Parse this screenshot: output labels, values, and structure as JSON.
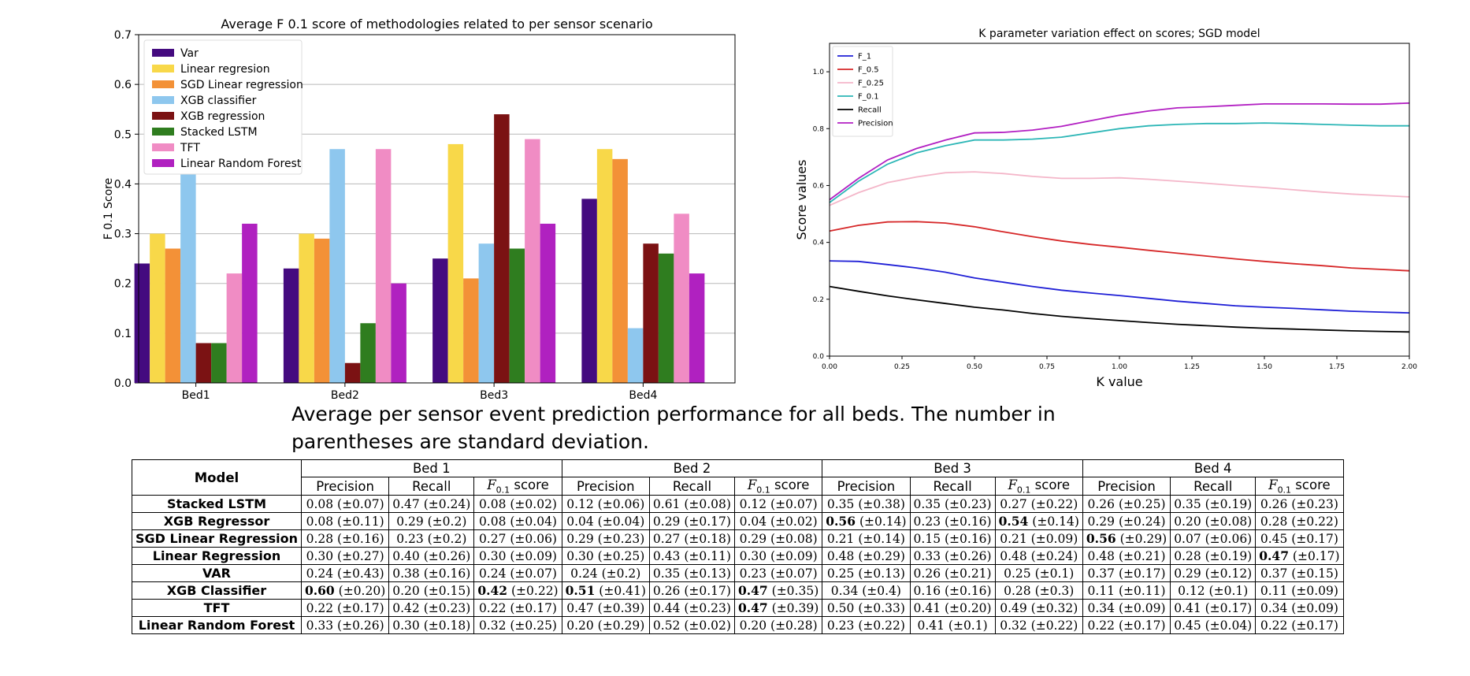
{
  "chart_data": [
    {
      "type": "bar",
      "title": "Average F 0.1 score of methodologies related to per sensor scenario",
      "xlabel": "",
      "ylabel": "F 0.1 Score",
      "ylim": [
        0,
        0.7
      ],
      "yticks": [
        "0.0",
        "0.1",
        "0.2",
        "0.3",
        "0.4",
        "0.5",
        "0.6",
        "0.7"
      ],
      "grid": true,
      "legend": "top-left",
      "categories": [
        "Bed1",
        "Bed2",
        "Bed3",
        "Bed4"
      ],
      "series": [
        {
          "name": "Var",
          "color": "#440a7f",
          "values": [
            0.24,
            0.23,
            0.25,
            0.37
          ]
        },
        {
          "name": "Linear regresion",
          "color": "#f8d849",
          "values": [
            0.3,
            0.3,
            0.48,
            0.47
          ]
        },
        {
          "name": "SGD Linear regression",
          "color": "#f39137",
          "values": [
            0.27,
            0.29,
            0.21,
            0.45
          ]
        },
        {
          "name": "XGB classifier",
          "color": "#8ec7ee",
          "values": [
            0.42,
            0.47,
            0.28,
            0.11
          ]
        },
        {
          "name": "XGB regression",
          "color": "#7b1213",
          "values": [
            0.08,
            0.04,
            0.54,
            0.28
          ]
        },
        {
          "name": "Stacked LSTM",
          "color": "#2f7d1f",
          "values": [
            0.08,
            0.12,
            0.27,
            0.26
          ]
        },
        {
          "name": "TFT",
          "color": "#f08cc4",
          "values": [
            0.22,
            0.47,
            0.49,
            0.34
          ]
        },
        {
          "name": "Linear Random Forest",
          "color": "#b021c0",
          "values": [
            0.32,
            0.2,
            0.32,
            0.22
          ]
        }
      ]
    },
    {
      "type": "line",
      "title": "K parameter variation effect on scores; SGD model",
      "xlabel": "K value",
      "ylabel": "Score values",
      "xlim": [
        0,
        2.0
      ],
      "ylim": [
        0,
        1.1
      ],
      "xticks": [
        "0.00",
        "0.25",
        "0.50",
        "0.75",
        "1.00",
        "1.25",
        "1.50",
        "1.75",
        "2.00"
      ],
      "yticks": [
        "0.0",
        "0.2",
        "0.4",
        "0.6",
        "0.8",
        "1.0"
      ],
      "grid": false,
      "legend": "top-left",
      "x": [
        0,
        0.1,
        0.2,
        0.3,
        0.4,
        0.5,
        0.6,
        0.7,
        0.8,
        0.9,
        1.0,
        1.1,
        1.2,
        1.3,
        1.4,
        1.5,
        1.6,
        1.7,
        1.8,
        1.9,
        2.0
      ],
      "series": [
        {
          "name": "F_1",
          "color": "#1f1fd6",
          "values": [
            0.335,
            0.333,
            0.322,
            0.31,
            0.295,
            0.275,
            0.26,
            0.245,
            0.232,
            0.222,
            0.213,
            0.203,
            0.193,
            0.185,
            0.177,
            0.172,
            0.168,
            0.163,
            0.158,
            0.155,
            0.152
          ]
        },
        {
          "name": "F_0.5",
          "color": "#d62728",
          "values": [
            0.44,
            0.46,
            0.472,
            0.473,
            0.468,
            0.455,
            0.437,
            0.42,
            0.405,
            0.393,
            0.383,
            0.372,
            0.362,
            0.352,
            0.342,
            0.333,
            0.325,
            0.318,
            0.31,
            0.305,
            0.3
          ]
        },
        {
          "name": "F_0.25",
          "color": "#f4b6c9",
          "values": [
            0.53,
            0.575,
            0.61,
            0.63,
            0.645,
            0.648,
            0.642,
            0.632,
            0.625,
            0.625,
            0.627,
            0.622,
            0.615,
            0.608,
            0.6,
            0.593,
            0.585,
            0.577,
            0.57,
            0.565,
            0.56
          ]
        },
        {
          "name": "F_0.1",
          "color": "#2cb6b6",
          "values": [
            0.54,
            0.615,
            0.675,
            0.715,
            0.74,
            0.76,
            0.76,
            0.763,
            0.77,
            0.785,
            0.8,
            0.81,
            0.815,
            0.818,
            0.818,
            0.82,
            0.818,
            0.815,
            0.812,
            0.81,
            0.81
          ]
        },
        {
          "name": "Recall",
          "color": "#000000",
          "values": [
            0.245,
            0.228,
            0.212,
            0.198,
            0.185,
            0.172,
            0.162,
            0.15,
            0.14,
            0.132,
            0.125,
            0.118,
            0.112,
            0.107,
            0.102,
            0.098,
            0.095,
            0.092,
            0.089,
            0.087,
            0.085
          ]
        },
        {
          "name": "Precision",
          "color": "#b21fc2",
          "values": [
            0.55,
            0.625,
            0.69,
            0.73,
            0.76,
            0.785,
            0.787,
            0.795,
            0.808,
            0.828,
            0.847,
            0.862,
            0.873,
            0.877,
            0.882,
            0.887,
            0.887,
            0.887,
            0.886,
            0.886,
            0.89
          ]
        }
      ]
    }
  ],
  "caption": "Average per sensor event prediction performance for all beds. The number in parentheses are standard deviation.",
  "table": {
    "model_header": "Model",
    "bed_headers": [
      "Bed 1",
      "Bed 2",
      "Bed 3",
      "Bed 4"
    ],
    "sub_headers": [
      "Precision",
      "Recall",
      "score"
    ],
    "fsub_label": "F",
    "fsub_index": "0.1",
    "rows": [
      {
        "model": "Stacked LSTM",
        "cells": [
          "0.08 (±0.07)",
          "0.47 (±0.24)",
          "0.08 (±0.02)",
          "0.12 (±0.06)",
          "0.61 (±0.08)",
          "0.12 (±0.07)",
          "0.35 (±0.38)",
          "0.35 (±0.23)",
          "0.27 (±0.22)",
          "0.26 (±0.25)",
          "0.35 (±0.19)",
          "0.26 (±0.23)"
        ],
        "bold": []
      },
      {
        "model": "XGB Regressor",
        "cells": [
          "0.08 (±0.11)",
          "0.29 (±0.2)",
          "0.08 (±0.04)",
          "0.04 (±0.04)",
          "0.29 (±0.17)",
          "0.04 (±0.02)",
          "0.56 (±0.14)",
          "0.23 (±0.16)",
          "0.54 (±0.14)",
          "0.29 (±0.24)",
          "0.20 (±0.08)",
          "0.28 (±0.22)"
        ],
        "bold": [
          6,
          8
        ]
      },
      {
        "model": "SGD Linear Regression",
        "cells": [
          "0.28 (±0.16)",
          "0.23 (±0.2)",
          "0.27 (±0.06)",
          "0.29 (±0.23)",
          "0.27 (±0.18)",
          "0.29 (±0.08)",
          "0.21 (±0.14)",
          "0.15 (±0.16)",
          "0.21 (±0.09)",
          "0.56 (±0.29)",
          "0.07 (±0.06)",
          "0.45 (±0.17)"
        ],
        "bold": [
          9
        ]
      },
      {
        "model": "Linear Regression",
        "cells": [
          "0.30 (±0.27)",
          "0.40 (±0.26)",
          "0.30 (±0.09)",
          "0.30 (±0.25)",
          "0.43 (±0.11)",
          "0.30 (±0.09)",
          "0.48 (±0.29)",
          "0.33 (±0.26)",
          "0.48 (±0.24)",
          "0.48 (±0.21)",
          "0.28 (±0.19)",
          "0.47 (±0.17)"
        ],
        "bold": [
          11
        ]
      },
      {
        "model": "VAR",
        "cells": [
          "0.24 (±0.43)",
          "0.38 (±0.16)",
          "0.24 (±0.07)",
          "0.24 (±0.2)",
          "0.35 (±0.13)",
          "0.23 (±0.07)",
          "0.25 (±0.13)",
          "0.26 (±0.21)",
          "0.25 (±0.1)",
          "0.37 (±0.17)",
          "0.29 (±0.12)",
          "0.37 (±0.15)"
        ],
        "bold": []
      },
      {
        "model": "XGB Classifier",
        "cells": [
          "0.60 (±0.20)",
          "0.20 (±0.15)",
          "0.42 (±0.22)",
          "0.51 (±0.41)",
          "0.26 (±0.17)",
          "0.47 (±0.35)",
          "0.34 (±0.4)",
          "0.16 (±0.16)",
          "0.28 (±0.3)",
          "0.11 (±0.11)",
          "0.12 (±0.1)",
          "0.11 (±0.09)"
        ],
        "bold": [
          0,
          2,
          3,
          5
        ]
      },
      {
        "model": "TFT",
        "cells": [
          "0.22 (±0.17)",
          "0.42 (±0.23)",
          "0.22 (±0.17)",
          "0.47 (±0.39)",
          "0.44 (±0.23)",
          "0.47 (±0.39)",
          "0.50 (±0.33)",
          "0.41 (±0.20)",
          "0.49 (±0.32)",
          "0.34 (±0.09)",
          "0.41 (±0.17)",
          "0.34 (±0.09)"
        ],
        "bold": [
          5
        ]
      },
      {
        "model": "Linear Random Forest",
        "cells": [
          "0.33 (±0.26)",
          "0.30 (±0.18)",
          "0.32 (±0.25)",
          "0.20 (±0.29)",
          "0.52 (±0.02)",
          "0.20 (±0.28)",
          "0.23 (±0.22)",
          "0.41 (±0.1)",
          "0.32 (±0.22)",
          "0.22 (±0.17)",
          "0.45 (±0.04)",
          "0.22 (±0.17)"
        ],
        "bold": []
      }
    ]
  }
}
